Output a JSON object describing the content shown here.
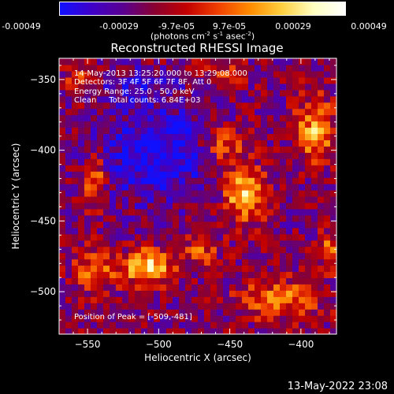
{
  "colorbar": {
    "ticks": [
      "-0.00049",
      "-0.00029",
      "-9.7e-05",
      "9.7e-05",
      "0.00029",
      "0.00049"
    ],
    "unit_main": "(photons cm",
    "unit_sup1": "-2",
    "unit_mid": " s",
    "unit_sup2": "-1",
    "unit_mid2": " asec",
    "unit_sup3": "-2",
    "unit_end": ")",
    "min": -0.00049,
    "max": 0.00049,
    "colors": [
      "#1010ff",
      "#3f00c8",
      "#5a0090",
      "#8a0030",
      "#c20000",
      "#f04000",
      "#ff8c00",
      "#ffd040",
      "#ffffc0",
      "#ffffff"
    ]
  },
  "chart_data": {
    "type": "heatmap",
    "title": "Reconstructed RHESSI Image",
    "xlabel": "Heliocentric X (arcsec)",
    "ylabel": "Heliocentric Y (arcsec)",
    "xlim": [
      -570,
      -375
    ],
    "ylim": [
      -530,
      -335
    ],
    "xticks": [
      -550,
      -500,
      -450,
      -400
    ],
    "yticks": [
      -500,
      -450,
      -400,
      -350
    ],
    "peak_position": [
      -509,
      -481
    ],
    "sources": [
      {
        "x": -508,
        "y": -482,
        "amp": 1.0,
        "sx": 12,
        "sy": 8
      },
      {
        "x": -440,
        "y": -430,
        "amp": 0.9,
        "sx": 10,
        "sy": 14
      },
      {
        "x": -455,
        "y": -395,
        "amp": 0.6,
        "sx": 10,
        "sy": 10
      },
      {
        "x": -390,
        "y": -385,
        "amp": 0.75,
        "sx": 9,
        "sy": 16
      },
      {
        "x": -545,
        "y": -420,
        "amp": 0.65,
        "sx": 6,
        "sy": 14
      },
      {
        "x": -545,
        "y": -485,
        "amp": 0.6,
        "sx": 10,
        "sy": 10
      },
      {
        "x": -415,
        "y": -505,
        "amp": 0.55,
        "sx": 20,
        "sy": 10
      },
      {
        "x": -470,
        "y": -470,
        "amp": 0.45,
        "sx": 8,
        "sy": 8
      },
      {
        "x": -380,
        "y": -470,
        "amp": 0.5,
        "sx": 6,
        "sy": 10
      },
      {
        "x": -555,
        "y": -350,
        "amp": 0.45,
        "sx": 8,
        "sy": 8
      },
      {
        "x": -455,
        "y": -345,
        "amp": 0.4,
        "sx": 10,
        "sy": 6
      },
      {
        "x": -500,
        "y": -403,
        "amp": -0.55,
        "sx": 30,
        "sy": 22
      },
      {
        "x": -515,
        "y": -355,
        "amp": -0.3,
        "sx": 20,
        "sy": 10
      }
    ]
  },
  "annotations": {
    "line1": "14-May-2013 13:25:20.000 to 13:29:08.000",
    "line2": "Detectors: 3F 4F 5F 6F 7F 8F, Att 0",
    "line3": "Energy Range: 25.0 - 50.0 keV",
    "line4": "Clean     Total counts: 6.84E+03",
    "peak": "Position of Peak = [-509,-481]"
  },
  "footer": "13-May-2022 23:08"
}
